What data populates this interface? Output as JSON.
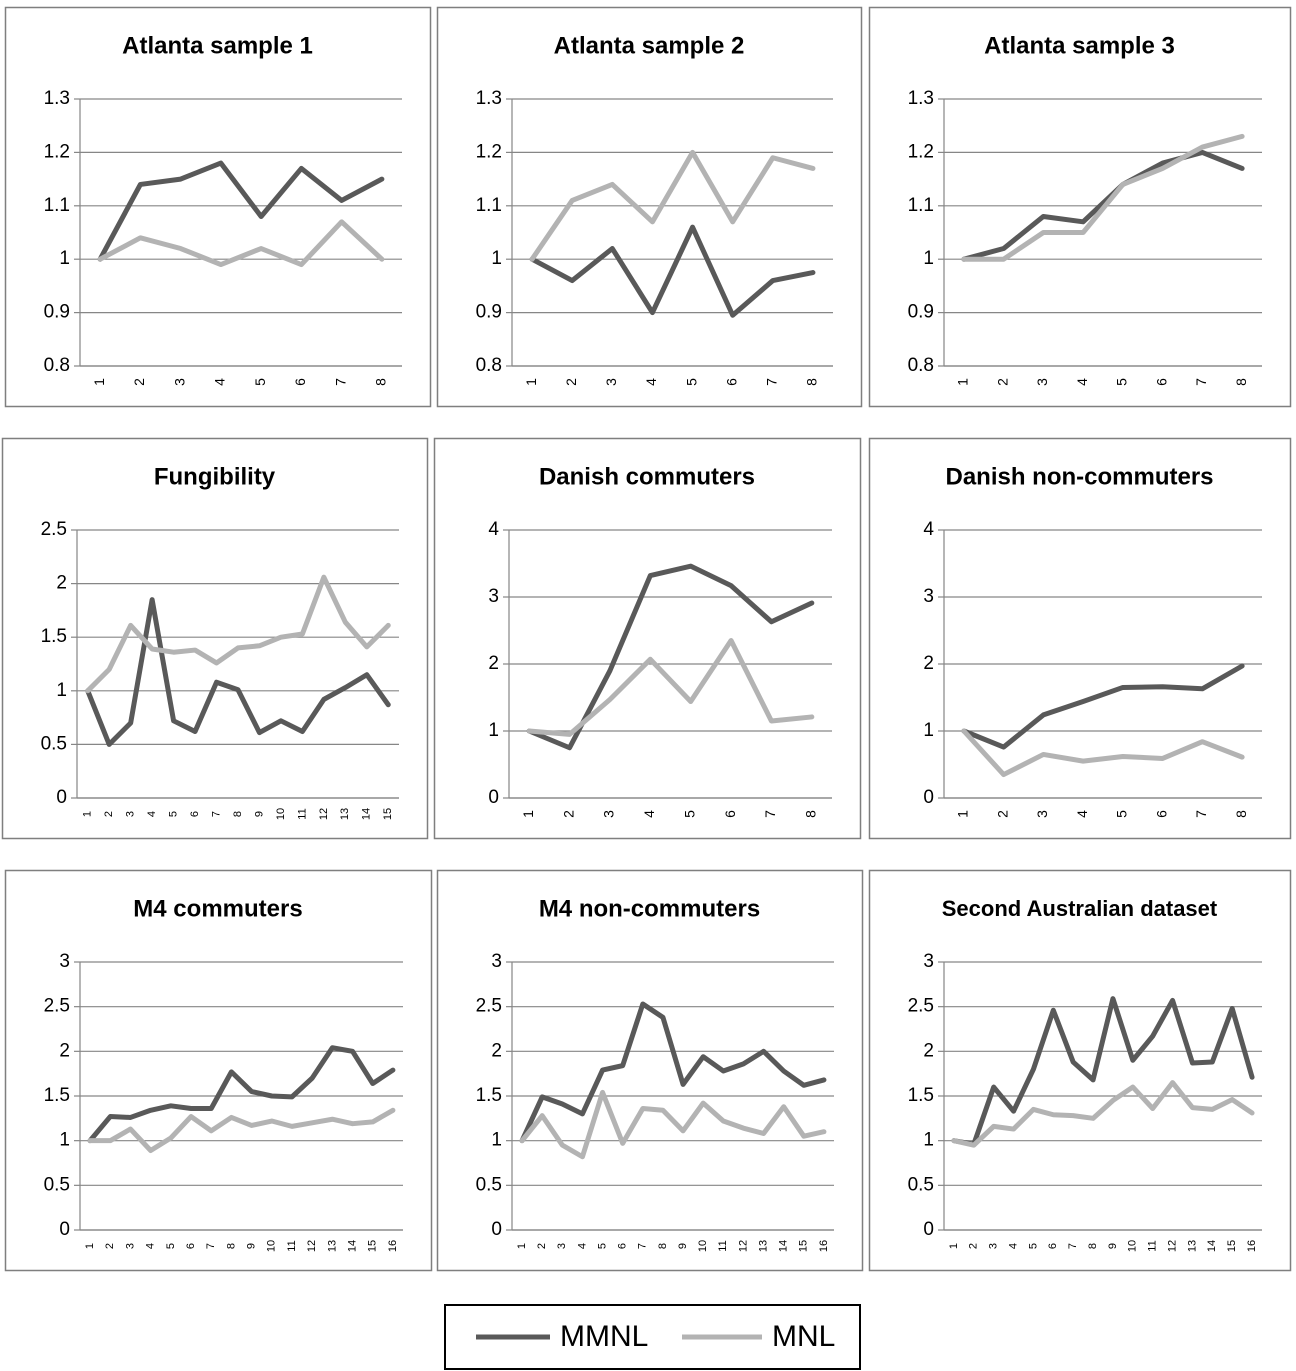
{
  "chart_data": [
    {
      "type": "line",
      "title": "Atlanta sample 1",
      "categories": [
        "1",
        "2",
        "3",
        "4",
        "5",
        "6",
        "7",
        "8"
      ],
      "series": [
        {
          "values": [
            1,
            1.14,
            1.15,
            1.18,
            1.08,
            1.17,
            1.11,
            1.15
          ]
        },
        {
          "values": [
            1,
            1.04,
            1.02,
            0.99,
            1.02,
            0.99,
            1.07,
            1.0
          ]
        }
      ],
      "ylim": [
        0.8,
        1.3
      ],
      "yticks": [
        0.8,
        0.9,
        1,
        1.1,
        1.2,
        1.3
      ],
      "grid": true
    },
    {
      "type": "line",
      "title": "Atlanta sample 2",
      "categories": [
        "1",
        "2",
        "3",
        "4",
        "5",
        "6",
        "7",
        "8"
      ],
      "series": [
        {
          "values": [
            1,
            0.96,
            1.02,
            0.9,
            1.06,
            0.895,
            0.96,
            0.975
          ]
        },
        {
          "values": [
            1,
            1.11,
            1.14,
            1.07,
            1.2,
            1.07,
            1.19,
            1.17
          ]
        }
      ],
      "ylim": [
        0.8,
        1.3
      ],
      "yticks": [
        0.8,
        0.9,
        1,
        1.1,
        1.2,
        1.3
      ],
      "grid": true
    },
    {
      "type": "line",
      "title": "Atlanta sample 3",
      "categories": [
        "1",
        "2",
        "3",
        "4",
        "5",
        "6",
        "7",
        "8"
      ],
      "series": [
        {
          "values": [
            1,
            1.02,
            1.08,
            1.07,
            1.14,
            1.18,
            1.2,
            1.17
          ]
        },
        {
          "values": [
            1,
            1.0,
            1.05,
            1.05,
            1.14,
            1.17,
            1.21,
            1.23
          ]
        }
      ],
      "ylim": [
        0.8,
        1.3
      ],
      "yticks": [
        0.8,
        0.9,
        1,
        1.1,
        1.2,
        1.3
      ],
      "grid": true
    },
    {
      "type": "line",
      "title": "Fungibility",
      "categories": [
        "1",
        "2",
        "3",
        "4",
        "5",
        "6",
        "7",
        "8",
        "9",
        "10",
        "11",
        "12",
        "13",
        "14",
        "15"
      ],
      "series": [
        {
          "values": [
            1,
            0.5,
            0.7,
            1.85,
            0.72,
            0.62,
            1.08,
            1.01,
            0.61,
            0.72,
            0.62,
            0.92,
            1.03,
            1.15,
            0.87
          ]
        },
        {
          "values": [
            1,
            1.2,
            1.61,
            1.39,
            1.36,
            1.38,
            1.26,
            1.4,
            1.42,
            1.5,
            1.53,
            2.06,
            1.64,
            1.41,
            1.61
          ]
        }
      ],
      "ylim": [
        0,
        2.5
      ],
      "yticks": [
        0,
        0.5,
        1,
        1.5,
        2,
        2.5
      ],
      "grid": true
    },
    {
      "type": "line",
      "title": "Danish commuters",
      "categories": [
        "1",
        "2",
        "3",
        "4",
        "5",
        "6",
        "7",
        "8"
      ],
      "series": [
        {
          "values": [
            1,
            0.75,
            1.9,
            3.32,
            3.46,
            3.17,
            2.63,
            2.91
          ]
        },
        {
          "values": [
            1,
            0.95,
            1.47,
            2.07,
            1.44,
            2.35,
            1.15,
            1.21
          ]
        }
      ],
      "ylim": [
        0,
        4
      ],
      "yticks": [
        0,
        1,
        2,
        3,
        4
      ],
      "grid": true
    },
    {
      "type": "line",
      "title": "Danish non-commuters",
      "categories": [
        "1",
        "2",
        "3",
        "4",
        "5",
        "6",
        "7",
        "8"
      ],
      "series": [
        {
          "values": [
            1,
            0.76,
            1.24,
            1.44,
            1.65,
            1.66,
            1.63,
            1.97
          ]
        },
        {
          "values": [
            1,
            0.35,
            0.65,
            0.55,
            0.62,
            0.59,
            0.84,
            0.61
          ]
        }
      ],
      "ylim": [
        0,
        4
      ],
      "yticks": [
        0,
        1,
        2,
        3,
        4
      ],
      "grid": true
    },
    {
      "type": "line",
      "title": "M4 commuters",
      "categories": [
        "1",
        "2",
        "3",
        "4",
        "5",
        "6",
        "7",
        "8",
        "9",
        "10",
        "11",
        "12",
        "13",
        "14",
        "15",
        "16"
      ],
      "series": [
        {
          "values": [
            1,
            1.27,
            1.26,
            1.34,
            1.39,
            1.36,
            1.36,
            1.77,
            1.55,
            1.5,
            1.49,
            1.7,
            2.04,
            2.0,
            1.64,
            1.79
          ]
        },
        {
          "values": [
            1,
            1.0,
            1.13,
            0.89,
            1.03,
            1.27,
            1.11,
            1.26,
            1.17,
            1.22,
            1.16,
            1.2,
            1.24,
            1.19,
            1.21,
            1.34
          ]
        }
      ],
      "ylim": [
        0,
        3
      ],
      "yticks": [
        0,
        0.5,
        1,
        1.5,
        2,
        2.5,
        3
      ],
      "grid": true
    },
    {
      "type": "line",
      "title": "M4 non-commuters",
      "categories": [
        "1",
        "2",
        "3",
        "4",
        "5",
        "6",
        "7",
        "8",
        "9",
        "10",
        "11",
        "12",
        "13",
        "14",
        "15",
        "16"
      ],
      "series": [
        {
          "values": [
            1,
            1.49,
            1.41,
            1.3,
            1.79,
            1.84,
            2.53,
            2.38,
            1.63,
            1.94,
            1.78,
            1.86,
            2.0,
            1.78,
            1.62,
            1.68
          ]
        },
        {
          "values": [
            1,
            1.28,
            0.95,
            0.82,
            1.54,
            0.97,
            1.36,
            1.34,
            1.11,
            1.42,
            1.22,
            1.14,
            1.08,
            1.38,
            1.05,
            1.1
          ]
        }
      ],
      "ylim": [
        0,
        3
      ],
      "yticks": [
        0,
        0.5,
        1,
        1.5,
        2,
        2.5,
        3
      ],
      "grid": true
    },
    {
      "type": "line",
      "title": "Second Australian dataset",
      "categories": [
        "1",
        "2",
        "3",
        "4",
        "5",
        "6",
        "7",
        "8",
        "9",
        "10",
        "11",
        "12",
        "13",
        "14",
        "15",
        "16"
      ],
      "series": [
        {
          "values": [
            1,
            0.96,
            1.6,
            1.33,
            1.8,
            2.46,
            1.88,
            1.68,
            2.59,
            1.9,
            2.17,
            2.57,
            1.87,
            1.88,
            2.48,
            1.71
          ]
        },
        {
          "values": [
            1,
            0.95,
            1.16,
            1.13,
            1.35,
            1.29,
            1.28,
            1.25,
            1.45,
            1.6,
            1.36,
            1.65,
            1.37,
            1.35,
            1.46,
            1.31
          ]
        }
      ],
      "ylim": [
        0,
        3
      ],
      "yticks": [
        0,
        0.5,
        1,
        1.5,
        2,
        2.5,
        3
      ],
      "grid": true
    }
  ],
  "legend": [
    {
      "name": "MMNL",
      "color": "#595959"
    },
    {
      "name": "MNL",
      "color": "#b3b3b3"
    }
  ]
}
